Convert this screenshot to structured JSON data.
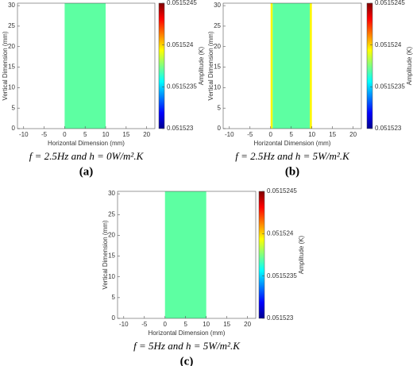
{
  "chart_data": [
    {
      "type": "heatmap",
      "colormap": "jet",
      "xlabel": "Horizontal Dimension (mm)",
      "ylabel": "Vertical Dimension (mm)",
      "colorbar_label": "Amplitude (K)",
      "caption": "f = 2.5Hz and h = 0W/m².K",
      "label": "(a)",
      "xlim": [
        -11.5,
        22
      ],
      "xticks": [
        -10,
        -5,
        0,
        5,
        10,
        15,
        20
      ],
      "ylim": [
        0,
        30.6
      ],
      "yticks": [
        0,
        5,
        10,
        15,
        20,
        25,
        30
      ],
      "clim": [
        0.051523,
        0.0515245
      ],
      "cticks": [
        0.051523,
        0.0515235,
        0.051524,
        0.0515245
      ],
      "xbins": [
        0,
        10
      ],
      "ybins": [
        0,
        30.6
      ],
      "values": [
        0.0515237
      ]
    },
    {
      "type": "heatmap",
      "colormap": "jet",
      "xlabel": "Horizontal Dimension (mm)",
      "ylabel": "Vertical Dimension (mm)",
      "colorbar_label": "Amplitude (K)",
      "caption": "f = 2.5Hz and h = 5W/m².K",
      "label": "(b)",
      "xlim": [
        -11.5,
        22
      ],
      "xticks": [
        -10,
        -5,
        0,
        5,
        10,
        15,
        20
      ],
      "ylim": [
        0,
        30.6
      ],
      "yticks": [
        0,
        5,
        10,
        15,
        20,
        25,
        30
      ],
      "clim": [
        0.051523,
        0.0515245
      ],
      "cticks": [
        0.051523,
        0.0515235,
        0.051524,
        0.0515245
      ],
      "xbins": [
        0,
        0.5,
        9.5,
        10
      ],
      "ybins": [
        0,
        30.6
      ],
      "values": [
        0.05152395,
        0.0515237,
        0.05152395
      ]
    },
    {
      "type": "heatmap",
      "colormap": "jet",
      "xlabel": "Horizontal Dimension (mm)",
      "ylabel": "Vertical Dimension (mm)",
      "colorbar_label": "Amplitude (K)",
      "caption": "f = 5Hz and h = 5W/m².K",
      "label": "(c)",
      "xlim": [
        -11.5,
        22
      ],
      "xticks": [
        -10,
        -5,
        0,
        5,
        10,
        15,
        20
      ],
      "ylim": [
        0,
        30.6
      ],
      "yticks": [
        0,
        5,
        10,
        15,
        20,
        25,
        30
      ],
      "clim": [
        0.051523,
        0.0515245
      ],
      "cticks": [
        0.051523,
        0.0515235,
        0.051524,
        0.0515245
      ],
      "xbins": [
        0,
        10
      ],
      "ybins": [
        0,
        30.6
      ],
      "values": [
        0.0515237
      ]
    }
  ]
}
